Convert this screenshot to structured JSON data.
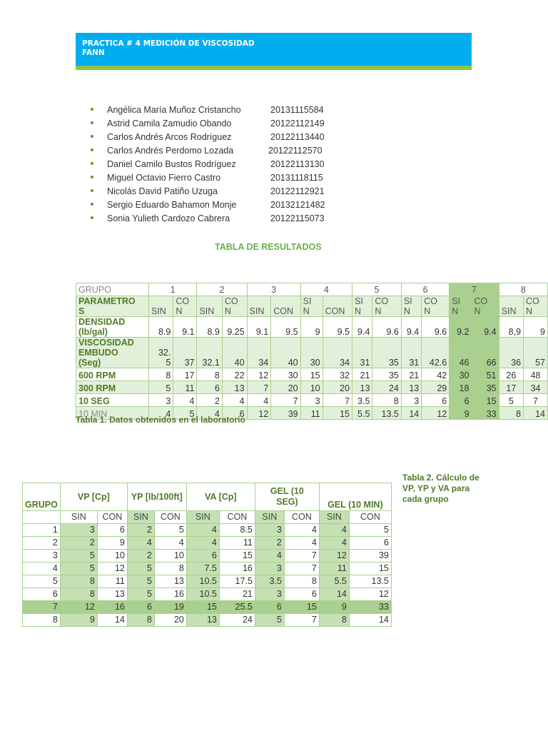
{
  "header": {
    "title_line1": "PRACTICA # 4 MEDICIÓN DE VISCOSIDAD",
    "title_line2": "FANN",
    "banner_color": "#00aeef",
    "stripe_color": "#8dc63f"
  },
  "members": [
    {
      "name": "Angélica María Muñoz Cristancho",
      "id": "20131115584"
    },
    {
      "name": "Astrid Camila Zamudio Obando",
      "id": "20122112149"
    },
    {
      "name": "Carlos Andrés Arcos Rodríguez",
      "id": "20122113440"
    },
    {
      "name": "Carlos Andrés Perdomo Lozada",
      "id": "20122112570"
    },
    {
      "name": "Daniel Camilo Bustos Rodríguez",
      "id": "20122113130"
    },
    {
      "name": "Miguel Octavio Fierro Castro",
      "id": "20131118115"
    },
    {
      "name": "Nicolás David Patiño Uzuga",
      "id": "20122112921"
    },
    {
      "name": "Sergio Eduardo Bahamon Monje",
      "id": "20132121482"
    },
    {
      "name": "Sonia Yulieth Cardozo Cabrera",
      "id": "20122115073"
    }
  ],
  "section_title": "TABLA DE RESULTADOS",
  "table1": {
    "grupo_label": "GRUPO",
    "groups": [
      "1",
      "2",
      "3",
      "4",
      "5",
      "6",
      "7",
      "8"
    ],
    "param_label_a": "PARAMETRO",
    "param_label_b": "S",
    "subheaders": [
      [
        "SIN",
        ""
      ],
      [
        "CO",
        "N"
      ],
      [
        "SIN",
        ""
      ],
      [
        "CO",
        "N"
      ],
      [
        "SIN",
        ""
      ],
      [
        "CON",
        ""
      ],
      [
        "SI",
        "N"
      ],
      [
        "CON",
        ""
      ],
      [
        "SI",
        "N"
      ],
      [
        "CO",
        "N"
      ],
      [
        "SI",
        "N"
      ],
      [
        "CO",
        "N"
      ],
      [
        "SI",
        "N"
      ],
      [
        "CO",
        "N"
      ],
      [
        "SIN",
        ""
      ],
      [
        "CO",
        "N"
      ]
    ],
    "rows": [
      {
        "label_a": "DENSIDAD",
        "label_b": "(lb/gal)",
        "label_c": "",
        "values": [
          "8.9",
          "9.1",
          "8.9",
          "9.25",
          "9.1",
          "9.5",
          "9",
          "9.5",
          "9.4",
          "9.6",
          "9.4",
          "9.6",
          "9.2",
          "9.4",
          "8,9",
          "9"
        ]
      },
      {
        "label_a": "VISCOSIDAD",
        "label_b": "EMBUDO",
        "label_c": "(Seg)",
        "values": [
          "32.\n5",
          "37",
          "32.1",
          "40",
          "34",
          "40",
          "30",
          "34",
          "31",
          "35",
          "31",
          "42.6",
          "46",
          "66",
          "36",
          "57"
        ]
      },
      {
        "label_a": "600 RPM",
        "values": [
          "8",
          "17",
          "8",
          "22",
          "12",
          "30",
          "15",
          "32",
          "21",
          "35",
          "21",
          "42",
          "30",
          "51",
          "26",
          "48"
        ]
      },
      {
        "label_a": "300 RPM",
        "values": [
          "5",
          "11",
          "6",
          "13",
          "7",
          "20",
          "10",
          "20",
          "13",
          "24",
          "13",
          "29",
          "18",
          "35",
          "17",
          "34"
        ]
      },
      {
        "label_a": "10 SEG",
        "values": [
          "3",
          "4",
          "2",
          "4",
          "4",
          "7",
          "3",
          "7",
          "3.5",
          "8",
          "3",
          "6",
          "6",
          "15",
          "5",
          "7"
        ]
      },
      {
        "label_a": "10 MIN",
        "values": [
          "4",
          "5",
          "4",
          "6",
          "12",
          "39",
          "11",
          "15",
          "5.5",
          "13.5",
          "14",
          "12",
          "9",
          "33",
          "8",
          "14"
        ]
      }
    ],
    "caption": "Tabla 1. Datos obtenidos en el laboratorio"
  },
  "table2": {
    "headers": {
      "grupo": "GRUPO",
      "vp": "VP  [Cp]",
      "yp": "YP [lb/100ft]",
      "va": "VA [Cp]",
      "gel10s": "GEL (10 SEG)",
      "gel10m": "GEL (10 MIN)"
    },
    "sin": "SIN",
    "con": "CON",
    "rows": [
      {
        "g": "1",
        "v": [
          "3",
          "6",
          "2",
          "5",
          "4",
          "8.5",
          "3",
          "4",
          "4",
          "5"
        ]
      },
      {
        "g": "2",
        "v": [
          "2",
          "9",
          "4",
          "4",
          "4",
          "11",
          "2",
          "4",
          "4",
          "6"
        ]
      },
      {
        "g": "3",
        "v": [
          "5",
          "10",
          "2",
          "10",
          "6",
          "15",
          "4",
          "7",
          "12",
          "39"
        ]
      },
      {
        "g": "4",
        "v": [
          "5",
          "12",
          "5",
          "8",
          "7.5",
          "16",
          "3",
          "7",
          "11",
          "15"
        ]
      },
      {
        "g": "5",
        "v": [
          "8",
          "11",
          "5",
          "13",
          "10.5",
          "17.5",
          "3.5",
          "8",
          "5.5",
          "13.5"
        ]
      },
      {
        "g": "6",
        "v": [
          "8",
          "13",
          "5",
          "16",
          "10.5",
          "21",
          "3",
          "6",
          "14",
          "12"
        ]
      },
      {
        "g": "7",
        "v": [
          "12",
          "16",
          "6",
          "19",
          "15",
          "25.5",
          "6",
          "15",
          "9",
          "33"
        ]
      },
      {
        "g": "8",
        "v": [
          "9",
          "14",
          "8",
          "20",
          "13",
          "24",
          "5",
          "7",
          "8",
          "14"
        ]
      }
    ],
    "caption": "Tabla 2. Cálculo de VP, YP y VA para cada grupo"
  }
}
